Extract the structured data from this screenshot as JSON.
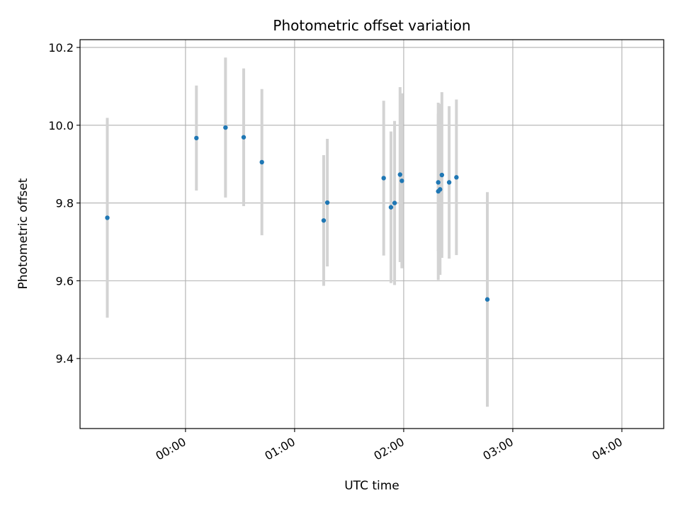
{
  "chart_data": {
    "type": "scatter",
    "title": "Photometric offset variation",
    "xlabel": "UTC time",
    "ylabel": "Photometric offset",
    "x_unit": "HH:MM UTC",
    "xlim": [
      "-00:58",
      "04:23"
    ],
    "ylim": [
      9.22,
      10.22
    ],
    "x_ticks": [
      "00:00",
      "01:00",
      "02:00",
      "03:00",
      "04:00"
    ],
    "y_ticks": [
      "9.4",
      "9.6",
      "9.8",
      "10.0",
      "10.2"
    ],
    "grid": true,
    "legend": "none",
    "colors": {
      "point": "#1f77b4",
      "errorbar": "#d3d3d3",
      "grid": "#b0b0b0"
    },
    "series": [
      {
        "points": [
          {
            "x": "-00:43",
            "y": 9.762,
            "yerr": 0.257
          },
          {
            "x": "00:06",
            "y": 9.967,
            "yerr": 0.135
          },
          {
            "x": "00:22",
            "y": 9.994,
            "yerr": 0.18
          },
          {
            "x": "00:32",
            "y": 9.969,
            "yerr": 0.177
          },
          {
            "x": "00:42",
            "y": 9.905,
            "yerr": 0.188
          },
          {
            "x": "01:16",
            "y": 9.755,
            "yerr": 0.168
          },
          {
            "x": "01:18",
            "y": 9.801,
            "yerr": 0.164
          },
          {
            "x": "01:49",
            "y": 9.864,
            "yerr": 0.199
          },
          {
            "x": "01:53",
            "y": 9.789,
            "yerr": 0.195
          },
          {
            "x": "01:55",
            "y": 9.8,
            "yerr": 0.211
          },
          {
            "x": "01:58",
            "y": 9.873,
            "yerr": 0.225
          },
          {
            "x": "01:59",
            "y": 9.857,
            "yerr": 0.225
          },
          {
            "x": "02:19",
            "y": 9.853,
            "yerr": 0.176
          },
          {
            "x": "02:19",
            "y": 9.83,
            "yerr": 0.228
          },
          {
            "x": "02:20",
            "y": 9.835,
            "yerr": 0.22
          },
          {
            "x": "02:21",
            "y": 9.872,
            "yerr": 0.213
          },
          {
            "x": "02:25",
            "y": 9.853,
            "yerr": 0.196
          },
          {
            "x": "02:29",
            "y": 9.866,
            "yerr": 0.2
          },
          {
            "x": "02:46",
            "y": 9.552,
            "yerr": 0.276
          }
        ]
      }
    ]
  }
}
